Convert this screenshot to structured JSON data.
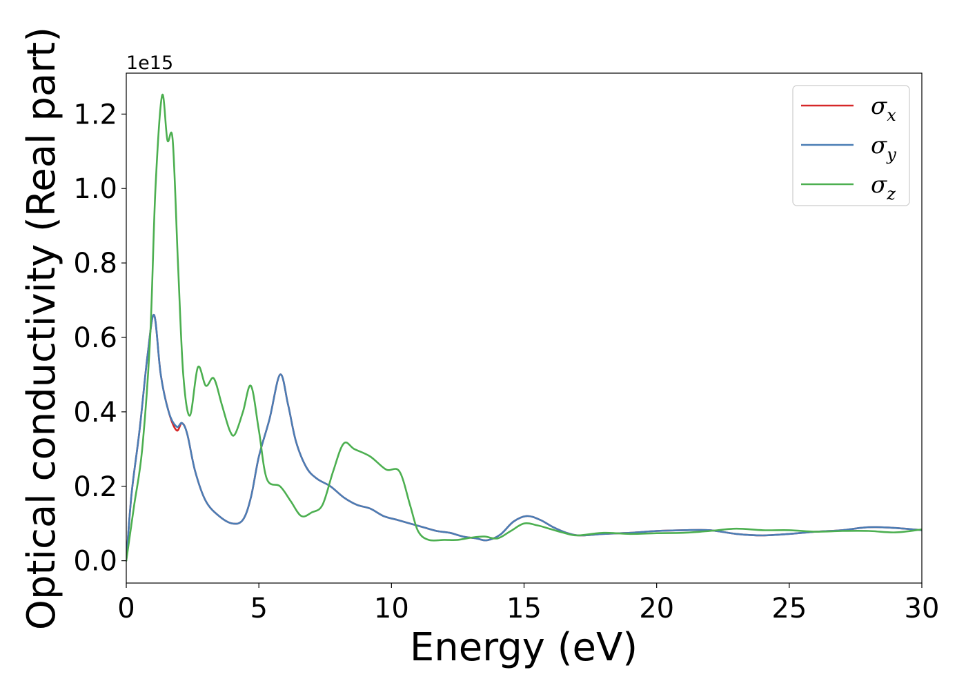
{
  "chart_data": {
    "type": "line",
    "xlabel": "Energy (eV)",
    "ylabel": "Optical conductivity (Real part)",
    "y_offset_label": "1e15",
    "xlim": [
      0,
      30
    ],
    "ylim": [
      -0.06,
      1.31
    ],
    "x_ticks": [
      0,
      5,
      10,
      15,
      20,
      25,
      30
    ],
    "x_tick_labels": [
      "0",
      "5",
      "10",
      "15",
      "20",
      "25",
      "30"
    ],
    "y_ticks": [
      0.0,
      0.2,
      0.4,
      0.6,
      0.8,
      1.0,
      1.2
    ],
    "y_tick_labels": [
      "0.0",
      "0.2",
      "0.4",
      "0.6",
      "0.8",
      "1.0",
      "1.2"
    ],
    "grid": false,
    "legend_position": "top-right",
    "series": [
      {
        "name": "σx",
        "symbol": "σ",
        "subscript": "x",
        "color": "#d62728",
        "x": [
          0,
          0.2,
          0.5,
          0.8,
          1.05,
          1.3,
          1.6,
          1.9,
          2.1,
          2.3,
          2.6,
          3.0,
          3.5,
          4.0,
          4.4,
          4.7,
          5.0,
          5.4,
          5.8,
          6.1,
          6.4,
          6.8,
          7.2,
          7.7,
          8.2,
          8.7,
          9.2,
          9.7,
          10.2,
          10.7,
          11.2,
          11.7,
          12.2,
          12.7,
          13.2,
          13.6,
          14.1,
          14.6,
          15.1,
          15.6,
          16.1,
          16.6,
          17.1,
          18.0,
          19.0,
          20.0,
          21.0,
          22.0,
          23.0,
          24.0,
          25.0,
          26.0,
          27.0,
          28.0,
          29.0,
          30.0
        ],
        "y": [
          0.0,
          0.18,
          0.35,
          0.55,
          0.66,
          0.5,
          0.4,
          0.35,
          0.37,
          0.34,
          0.24,
          0.16,
          0.12,
          0.1,
          0.11,
          0.17,
          0.28,
          0.38,
          0.5,
          0.42,
          0.32,
          0.25,
          0.22,
          0.2,
          0.17,
          0.15,
          0.14,
          0.12,
          0.11,
          0.1,
          0.09,
          0.08,
          0.075,
          0.065,
          0.06,
          0.055,
          0.07,
          0.105,
          0.12,
          0.11,
          0.09,
          0.075,
          0.068,
          0.072,
          0.075,
          0.08,
          0.082,
          0.082,
          0.072,
          0.068,
          0.072,
          0.078,
          0.082,
          0.09,
          0.088,
          0.082
        ]
      },
      {
        "name": "σy",
        "symbol": "σ",
        "subscript": "y",
        "color": "#4a7db5",
        "x": [
          0,
          0.2,
          0.5,
          0.8,
          1.05,
          1.3,
          1.6,
          1.9,
          2.1,
          2.3,
          2.6,
          3.0,
          3.5,
          4.0,
          4.4,
          4.7,
          5.0,
          5.4,
          5.8,
          6.1,
          6.4,
          6.8,
          7.2,
          7.7,
          8.2,
          8.7,
          9.2,
          9.7,
          10.2,
          10.7,
          11.2,
          11.7,
          12.2,
          12.7,
          13.2,
          13.6,
          14.1,
          14.6,
          15.1,
          15.6,
          16.1,
          16.6,
          17.1,
          18.0,
          19.0,
          20.0,
          21.0,
          22.0,
          23.0,
          24.0,
          25.0,
          26.0,
          27.0,
          28.0,
          29.0,
          30.0
        ],
        "y": [
          0.0,
          0.18,
          0.35,
          0.55,
          0.66,
          0.5,
          0.4,
          0.36,
          0.37,
          0.34,
          0.24,
          0.16,
          0.12,
          0.1,
          0.11,
          0.17,
          0.28,
          0.38,
          0.5,
          0.42,
          0.32,
          0.25,
          0.22,
          0.2,
          0.17,
          0.15,
          0.14,
          0.12,
          0.11,
          0.1,
          0.09,
          0.08,
          0.075,
          0.065,
          0.06,
          0.055,
          0.07,
          0.105,
          0.12,
          0.11,
          0.09,
          0.075,
          0.068,
          0.072,
          0.075,
          0.08,
          0.082,
          0.082,
          0.072,
          0.068,
          0.072,
          0.078,
          0.082,
          0.09,
          0.088,
          0.082
        ]
      },
      {
        "name": "σz",
        "symbol": "σ",
        "subscript": "z",
        "color": "#4caf50",
        "x": [
          0,
          0.3,
          0.6,
          0.9,
          1.1,
          1.35,
          1.55,
          1.75,
          1.95,
          2.15,
          2.4,
          2.7,
          3.0,
          3.3,
          3.6,
          3.9,
          4.1,
          4.4,
          4.7,
          5.0,
          5.3,
          5.8,
          6.2,
          6.6,
          7.0,
          7.4,
          7.8,
          8.2,
          8.6,
          9.2,
          9.8,
          10.3,
          10.7,
          11.0,
          11.4,
          12.0,
          12.5,
          13.0,
          13.5,
          14.0,
          14.5,
          15.0,
          15.5,
          16.0,
          16.5,
          17.0,
          18.0,
          19.0,
          20.0,
          21.0,
          22.0,
          23.0,
          24.0,
          25.0,
          26.0,
          27.0,
          28.0,
          29.0,
          30.0
        ],
        "y": [
          0.0,
          0.15,
          0.3,
          0.6,
          1.0,
          1.25,
          1.13,
          1.13,
          0.8,
          0.5,
          0.39,
          0.52,
          0.47,
          0.49,
          0.42,
          0.35,
          0.34,
          0.4,
          0.47,
          0.35,
          0.22,
          0.2,
          0.16,
          0.12,
          0.13,
          0.15,
          0.24,
          0.315,
          0.3,
          0.28,
          0.245,
          0.24,
          0.15,
          0.08,
          0.056,
          0.056,
          0.056,
          0.062,
          0.065,
          0.06,
          0.08,
          0.1,
          0.095,
          0.085,
          0.075,
          0.068,
          0.075,
          0.072,
          0.074,
          0.075,
          0.08,
          0.086,
          0.082,
          0.082,
          0.078,
          0.08,
          0.08,
          0.076,
          0.084
        ]
      }
    ]
  }
}
